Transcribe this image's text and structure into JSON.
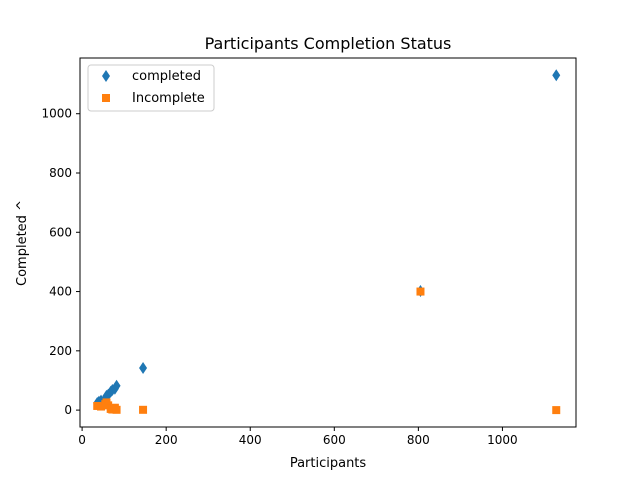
{
  "chart_data": {
    "type": "scatter",
    "title": "Participants Completion Status",
    "xlabel": "Participants",
    "ylabel": "Completed ^",
    "xlim": [
      -5,
      1175
    ],
    "ylim": [
      -57,
      1188
    ],
    "xticks": [
      0,
      200,
      400,
      600,
      800,
      1000
    ],
    "yticks": [
      0,
      200,
      400,
      600,
      800,
      1000
    ],
    "grid": false,
    "legend_position": "top-left",
    "series": [
      {
        "name": "completed",
        "marker": "diamond",
        "color": "#1f77b4",
        "points": [
          {
            "x": 36,
            "y": 24
          },
          {
            "x": 40,
            "y": 28
          },
          {
            "x": 45,
            "y": 32
          },
          {
            "x": 55,
            "y": 40
          },
          {
            "x": 58,
            "y": 48
          },
          {
            "x": 62,
            "y": 52
          },
          {
            "x": 68,
            "y": 62
          },
          {
            "x": 72,
            "y": 68
          },
          {
            "x": 78,
            "y": 72
          },
          {
            "x": 82,
            "y": 82
          },
          {
            "x": 145,
            "y": 142
          },
          {
            "x": 805,
            "y": 402
          },
          {
            "x": 1128,
            "y": 1130
          }
        ]
      },
      {
        "name": "Incomplete",
        "marker": "square",
        "color": "#ff7f0e",
        "points": [
          {
            "x": 36,
            "y": 14
          },
          {
            "x": 45,
            "y": 12
          },
          {
            "x": 55,
            "y": 20
          },
          {
            "x": 58,
            "y": 26
          },
          {
            "x": 62,
            "y": 16
          },
          {
            "x": 68,
            "y": 4
          },
          {
            "x": 72,
            "y": 2
          },
          {
            "x": 78,
            "y": 8
          },
          {
            "x": 82,
            "y": 1
          },
          {
            "x": 145,
            "y": 1
          },
          {
            "x": 805,
            "y": 400
          },
          {
            "x": 1128,
            "y": 0
          }
        ]
      }
    ]
  }
}
